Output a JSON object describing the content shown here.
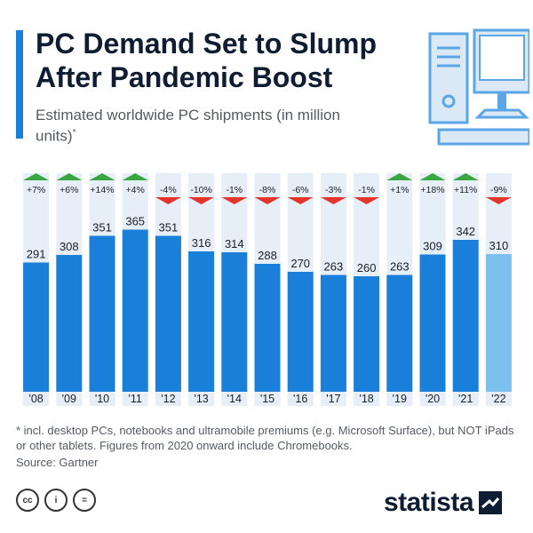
{
  "header": {
    "title": "PC Demand Set to Slump After Pandemic Boost",
    "subtitle": "Estimated worldwide PC shipments (in million units)",
    "subtitle_mark": "*"
  },
  "chart_data": {
    "type": "bar",
    "title": "PC Demand Set to Slump After Pandemic Boost",
    "subtitle": "Estimated worldwide PC shipments (in million units)*",
    "xlabel": "",
    "ylabel": "",
    "categories": [
      "'08",
      "'09",
      "'10",
      "'11",
      "'12",
      "'13",
      "'14",
      "'15",
      "'16",
      "'17",
      "'18",
      "'19",
      "'20",
      "'21",
      "'22"
    ],
    "values": [
      291,
      308,
      351,
      365,
      351,
      316,
      314,
      288,
      270,
      263,
      260,
      263,
      309,
      342,
      310
    ],
    "changes": [
      "+7%",
      "+6%",
      "+14%",
      "+4%",
      "-4%",
      "-10%",
      "-1%",
      "-8%",
      "-6%",
      "-3%",
      "-1%",
      "+1%",
      "+18%",
      "+11%",
      "-9%"
    ],
    "change_direction": [
      "up",
      "up",
      "up",
      "up",
      "down",
      "down",
      "down",
      "down",
      "down",
      "down",
      "down",
      "up",
      "up",
      "up",
      "down"
    ],
    "estimated": [
      false,
      false,
      false,
      false,
      false,
      false,
      false,
      false,
      false,
      false,
      false,
      false,
      false,
      false,
      true
    ],
    "grid": false,
    "colors": {
      "bar": "#1a7fd8",
      "bar_estimate": "#7cc0f0",
      "column_bg": "#e6eef8",
      "up": "#3aa641",
      "down": "#e5352b"
    }
  },
  "footnote": "* incl. desktop PCs, notebooks and ultramobile premiums (e.g. Microsoft Surface), but NOT iPads or other tablets. Figures from 2020 onward include Chromebooks.",
  "source": "Source: Gartner",
  "license_icons": [
    "cc-icon",
    "by-icon",
    "nd-icon"
  ],
  "license_labels": [
    "cc",
    "i",
    "="
  ],
  "brand": {
    "name": "statista"
  }
}
